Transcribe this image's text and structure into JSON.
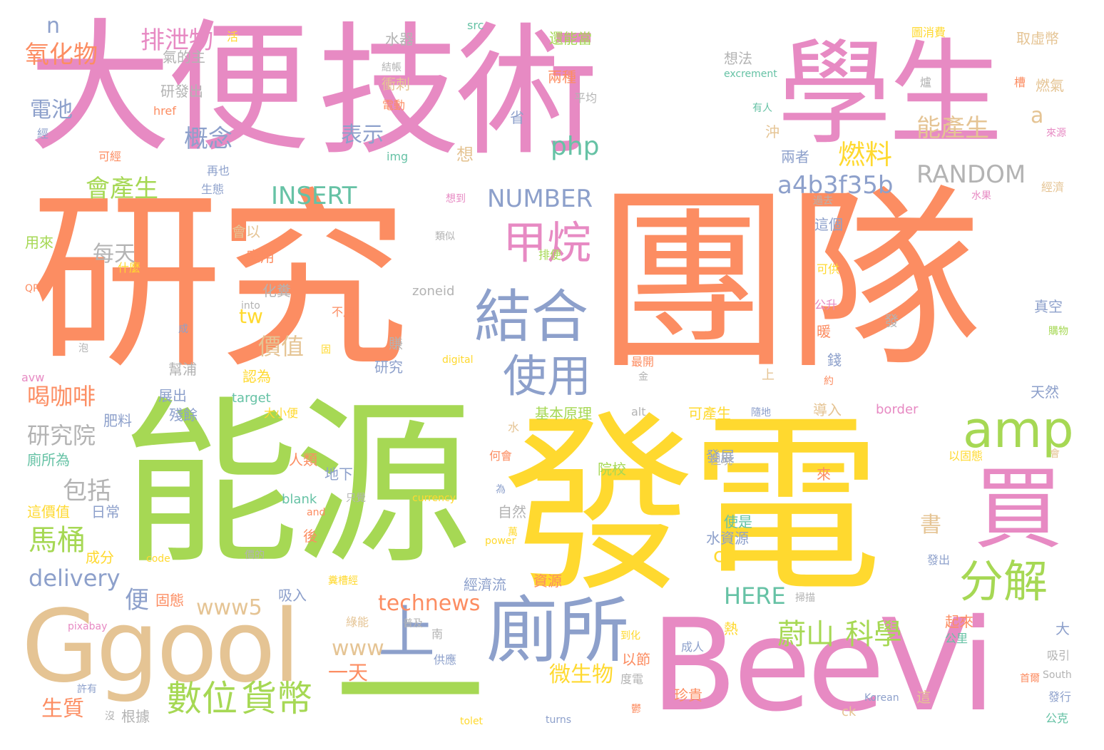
{
  "palette": {
    "orange": "#fc8d62",
    "pink": "#e78ac3",
    "green": "#a6d854",
    "yellow": "#ffd92f",
    "tan": "#e5c494",
    "blue": "#8da0cb",
    "teal": "#66c2a5",
    "grey": "#b3b3b3"
  },
  "words": [
    {
      "text": "大便",
      "color": "pink"
    },
    {
      "text": "技術",
      "color": "pink"
    },
    {
      "text": "學生",
      "color": "pink"
    },
    {
      "text": "研究",
      "color": "orange"
    },
    {
      "text": "團隊",
      "color": "orange"
    },
    {
      "text": "能源",
      "color": "green"
    },
    {
      "text": "發電",
      "color": "yellow"
    },
    {
      "text": "Ggool",
      "color": "tan"
    },
    {
      "text": "BeeVi",
      "color": "pink"
    },
    {
      "text": "一",
      "color": "green"
    },
    {
      "text": "廁所",
      "color": "blue"
    },
    {
      "text": "買",
      "color": "pink"
    },
    {
      "text": "結合",
      "color": "blue"
    },
    {
      "text": "使用",
      "color": "blue"
    },
    {
      "text": "甲烷",
      "color": "pink"
    },
    {
      "text": "amp",
      "color": "green"
    },
    {
      "text": "分解",
      "color": "green"
    },
    {
      "text": "上",
      "color": "blue"
    },
    {
      "text": "數位",
      "color": "green"
    },
    {
      "text": "貨幣",
      "color": "green"
    },
    {
      "text": "蔚山",
      "color": "green"
    },
    {
      "text": "科學",
      "color": "green"
    },
    {
      "text": "馬桶",
      "color": "green"
    },
    {
      "text": "排泄物",
      "color": "pink"
    },
    {
      "text": "氧化物",
      "color": "orange"
    },
    {
      "text": "電池",
      "color": "blue"
    },
    {
      "text": "概念",
      "color": "blue"
    },
    {
      "text": "表示",
      "color": "blue"
    },
    {
      "text": "會產生",
      "color": "green"
    },
    {
      "text": "php",
      "color": "teal"
    },
    {
      "text": "燃料",
      "color": "yellow"
    },
    {
      "text": "能產生",
      "color": "tan"
    },
    {
      "text": "INSERT",
      "color": "teal"
    },
    {
      "text": "NUMBER",
      "color": "blue"
    },
    {
      "text": "RANDOM",
      "color": "grey"
    },
    {
      "text": "a4b3f35b",
      "color": "blue"
    },
    {
      "text": "每天",
      "color": "grey"
    },
    {
      "text": "價值",
      "color": "tan"
    },
    {
      "text": "喝咖啡",
      "color": "orange"
    },
    {
      "text": "研究院",
      "color": "grey"
    },
    {
      "text": "包括",
      "color": "grey"
    },
    {
      "text": "delivery",
      "color": "blue"
    },
    {
      "text": "technews",
      "color": "orange"
    },
    {
      "text": "www5",
      "color": "tan"
    },
    {
      "text": "www",
      "color": "tan"
    },
    {
      "text": "HERE",
      "color": "teal"
    },
    {
      "text": "微生物",
      "color": "yellow"
    },
    {
      "text": "生質",
      "color": "orange"
    },
    {
      "text": "一天",
      "color": "orange"
    },
    {
      "text": "cb",
      "color": "yellow"
    },
    {
      "text": "書",
      "color": "tan"
    },
    {
      "text": "tw",
      "color": "yellow"
    },
    {
      "text": "便",
      "color": "blue"
    },
    {
      "text": "n",
      "color": "blue"
    },
    {
      "text": "a",
      "color": "tan"
    },
    {
      "text": "水器",
      "color": "grey"
    },
    {
      "text": "src",
      "color": "teal"
    },
    {
      "text": "還能當",
      "color": "green"
    },
    {
      "text": "圖消費",
      "color": "yellow"
    },
    {
      "text": "取虛幣",
      "color": "tan"
    },
    {
      "text": "氣的主",
      "color": "grey"
    },
    {
      "text": "想法",
      "color": "grey"
    },
    {
      "text": "excrement",
      "color": "teal"
    },
    {
      "text": "兩種",
      "color": "orange"
    },
    {
      "text": "燃氣",
      "color": "tan"
    },
    {
      "text": "衝刺",
      "color": "tan"
    },
    {
      "text": "研發出",
      "color": "grey"
    },
    {
      "text": "href",
      "color": "orange"
    },
    {
      "text": "平均",
      "color": "grey"
    },
    {
      "text": "電動",
      "color": "orange"
    },
    {
      "text": "有人",
      "color": "teal"
    },
    {
      "text": "省",
      "color": "blue"
    },
    {
      "text": "沖",
      "color": "tan"
    },
    {
      "text": "經",
      "color": "blue"
    },
    {
      "text": "可經",
      "color": "orange"
    },
    {
      "text": "img",
      "color": "teal"
    },
    {
      "text": "想",
      "color": "tan"
    },
    {
      "text": "兩者",
      "color": "blue"
    },
    {
      "text": "再也",
      "color": "blue"
    },
    {
      "text": "生態",
      "color": "blue"
    },
    {
      "text": "經濟",
      "color": "tan"
    },
    {
      "text": "用來",
      "color": "green"
    },
    {
      "text": "會以",
      "color": "tan"
    },
    {
      "text": "這個",
      "color": "blue"
    },
    {
      "text": "應用",
      "color": "orange"
    },
    {
      "text": "什麼",
      "color": "yellow"
    },
    {
      "text": "排便",
      "color": "green"
    },
    {
      "text": "可供",
      "color": "yellow"
    },
    {
      "text": "QR",
      "color": "orange"
    },
    {
      "text": "化糞",
      "color": "grey"
    },
    {
      "text": "zoneid",
      "color": "grey"
    },
    {
      "text": "公升",
      "color": "pink"
    },
    {
      "text": "真空",
      "color": "blue"
    },
    {
      "text": "into",
      "color": "grey"
    },
    {
      "text": "不用",
      "color": "orange"
    },
    {
      "text": "暖",
      "color": "orange"
    },
    {
      "text": "發",
      "color": "grey"
    },
    {
      "text": "購物",
      "color": "green"
    },
    {
      "text": "digital",
      "color": "yellow"
    },
    {
      "text": "研究",
      "color": "blue"
    },
    {
      "text": "幫浦",
      "color": "grey"
    },
    {
      "text": "錢",
      "color": "blue"
    },
    {
      "text": "avw",
      "color": "pink"
    },
    {
      "text": "認為",
      "color": "yellow"
    },
    {
      "text": "target",
      "color": "teal"
    },
    {
      "text": "天然",
      "color": "blue"
    },
    {
      "text": "展出",
      "color": "blue"
    },
    {
      "text": "殘餘",
      "color": "blue"
    },
    {
      "text": "大小便",
      "color": "yellow"
    },
    {
      "text": "肥料",
      "color": "blue"
    },
    {
      "text": "基本原理",
      "color": "green"
    },
    {
      "text": "alt",
      "color": "grey"
    },
    {
      "text": "可產生",
      "color": "yellow"
    },
    {
      "text": "隨地",
      "color": "blue"
    },
    {
      "text": "導入",
      "color": "tan"
    },
    {
      "text": "border",
      "color": "pink"
    },
    {
      "text": "廁所為",
      "color": "teal"
    },
    {
      "text": "人類",
      "color": "orange"
    },
    {
      "text": "地下",
      "color": "blue"
    },
    {
      "text": "發展",
      "color": "blue"
    },
    {
      "text": "以固態",
      "color": "yellow"
    },
    {
      "text": "院校",
      "color": "green"
    },
    {
      "text": "何會",
      "color": "orange"
    },
    {
      "text": "但現",
      "color": "grey"
    },
    {
      "text": "這價值",
      "color": "yellow"
    },
    {
      "text": "日常",
      "color": "blue"
    },
    {
      "text": "blank",
      "color": "teal"
    },
    {
      "text": "自然",
      "color": "grey"
    },
    {
      "text": "currency",
      "color": "yellow"
    },
    {
      "text": "使是",
      "color": "teal"
    },
    {
      "text": "水資源",
      "color": "blue"
    },
    {
      "text": "資源",
      "color": "orange"
    },
    {
      "text": "power",
      "color": "yellow"
    },
    {
      "text": "成分",
      "color": "yellow"
    },
    {
      "text": "經濟流",
      "color": "blue"
    },
    {
      "text": "固態",
      "color": "orange"
    },
    {
      "text": "吸入",
      "color": "blue"
    },
    {
      "text": "code",
      "color": "yellow"
    },
    {
      "text": "發出",
      "color": "blue"
    },
    {
      "text": "掃描",
      "color": "grey"
    },
    {
      "text": "綠能",
      "color": "tan"
    },
    {
      "text": "普及",
      "color": "grey"
    },
    {
      "text": "pixabay",
      "color": "pink"
    },
    {
      "text": "起來",
      "color": "orange"
    },
    {
      "text": "公里",
      "color": "teal"
    },
    {
      "text": "供應",
      "color": "blue"
    },
    {
      "text": "以節",
      "color": "orange"
    },
    {
      "text": "度電",
      "color": "grey"
    },
    {
      "text": "成人",
      "color": "blue"
    },
    {
      "text": "吸引",
      "color": "grey"
    },
    {
      "text": "South",
      "color": "grey"
    },
    {
      "text": "許有",
      "color": "blue"
    },
    {
      "text": "根據",
      "color": "grey"
    },
    {
      "text": "珍貴",
      "color": "orange"
    },
    {
      "text": "Korean",
      "color": "blue"
    },
    {
      "text": "ck",
      "color": "tan"
    },
    {
      "text": "發行",
      "color": "blue"
    },
    {
      "text": "公克",
      "color": "teal"
    },
    {
      "text": "tolet",
      "color": "yellow"
    },
    {
      "text": "turns",
      "color": "blue"
    },
    {
      "text": "活",
      "color": "yellow"
    },
    {
      "text": "結帳",
      "color": "grey"
    },
    {
      "text": "爐",
      "color": "grey"
    },
    {
      "text": "槽",
      "color": "orange"
    },
    {
      "text": "來源",
      "color": "pink"
    },
    {
      "text": "想到",
      "color": "pink"
    },
    {
      "text": "類似",
      "color": "grey"
    },
    {
      "text": "水果",
      "color": "pink"
    },
    {
      "text": "過去",
      "color": "grey"
    },
    {
      "text": "成",
      "color": "blue"
    },
    {
      "text": "泡",
      "color": "grey"
    },
    {
      "text": "賺",
      "color": "grey"
    },
    {
      "text": "最開",
      "color": "orange"
    },
    {
      "text": "約",
      "color": "orange"
    },
    {
      "text": "金",
      "color": "grey"
    },
    {
      "text": "水",
      "color": "tan"
    },
    {
      "text": "來",
      "color": "orange"
    },
    {
      "text": "為",
      "color": "blue"
    },
    {
      "text": "只覺",
      "color": "grey"
    },
    {
      "text": "and",
      "color": "orange"
    },
    {
      "text": "後",
      "color": "orange"
    },
    {
      "text": "萬",
      "color": "yellow"
    },
    {
      "text": "價的",
      "color": "grey"
    },
    {
      "text": "熱",
      "color": "yellow"
    },
    {
      "text": "南",
      "color": "grey"
    },
    {
      "text": "大",
      "color": "blue"
    },
    {
      "text": "到化",
      "color": "yellow"
    },
    {
      "text": "糞槽經",
      "color": "yellow"
    },
    {
      "text": "這",
      "color": "tan"
    },
    {
      "text": "沒",
      "color": "grey"
    },
    {
      "text": "首爾",
      "color": "orange"
    },
    {
      "text": "會",
      "color": "tan"
    },
    {
      "text": "鬱",
      "color": "orange"
    },
    {
      "text": "固",
      "color": "yellow"
    },
    {
      "text": "上",
      "color": "tan"
    }
  ]
}
